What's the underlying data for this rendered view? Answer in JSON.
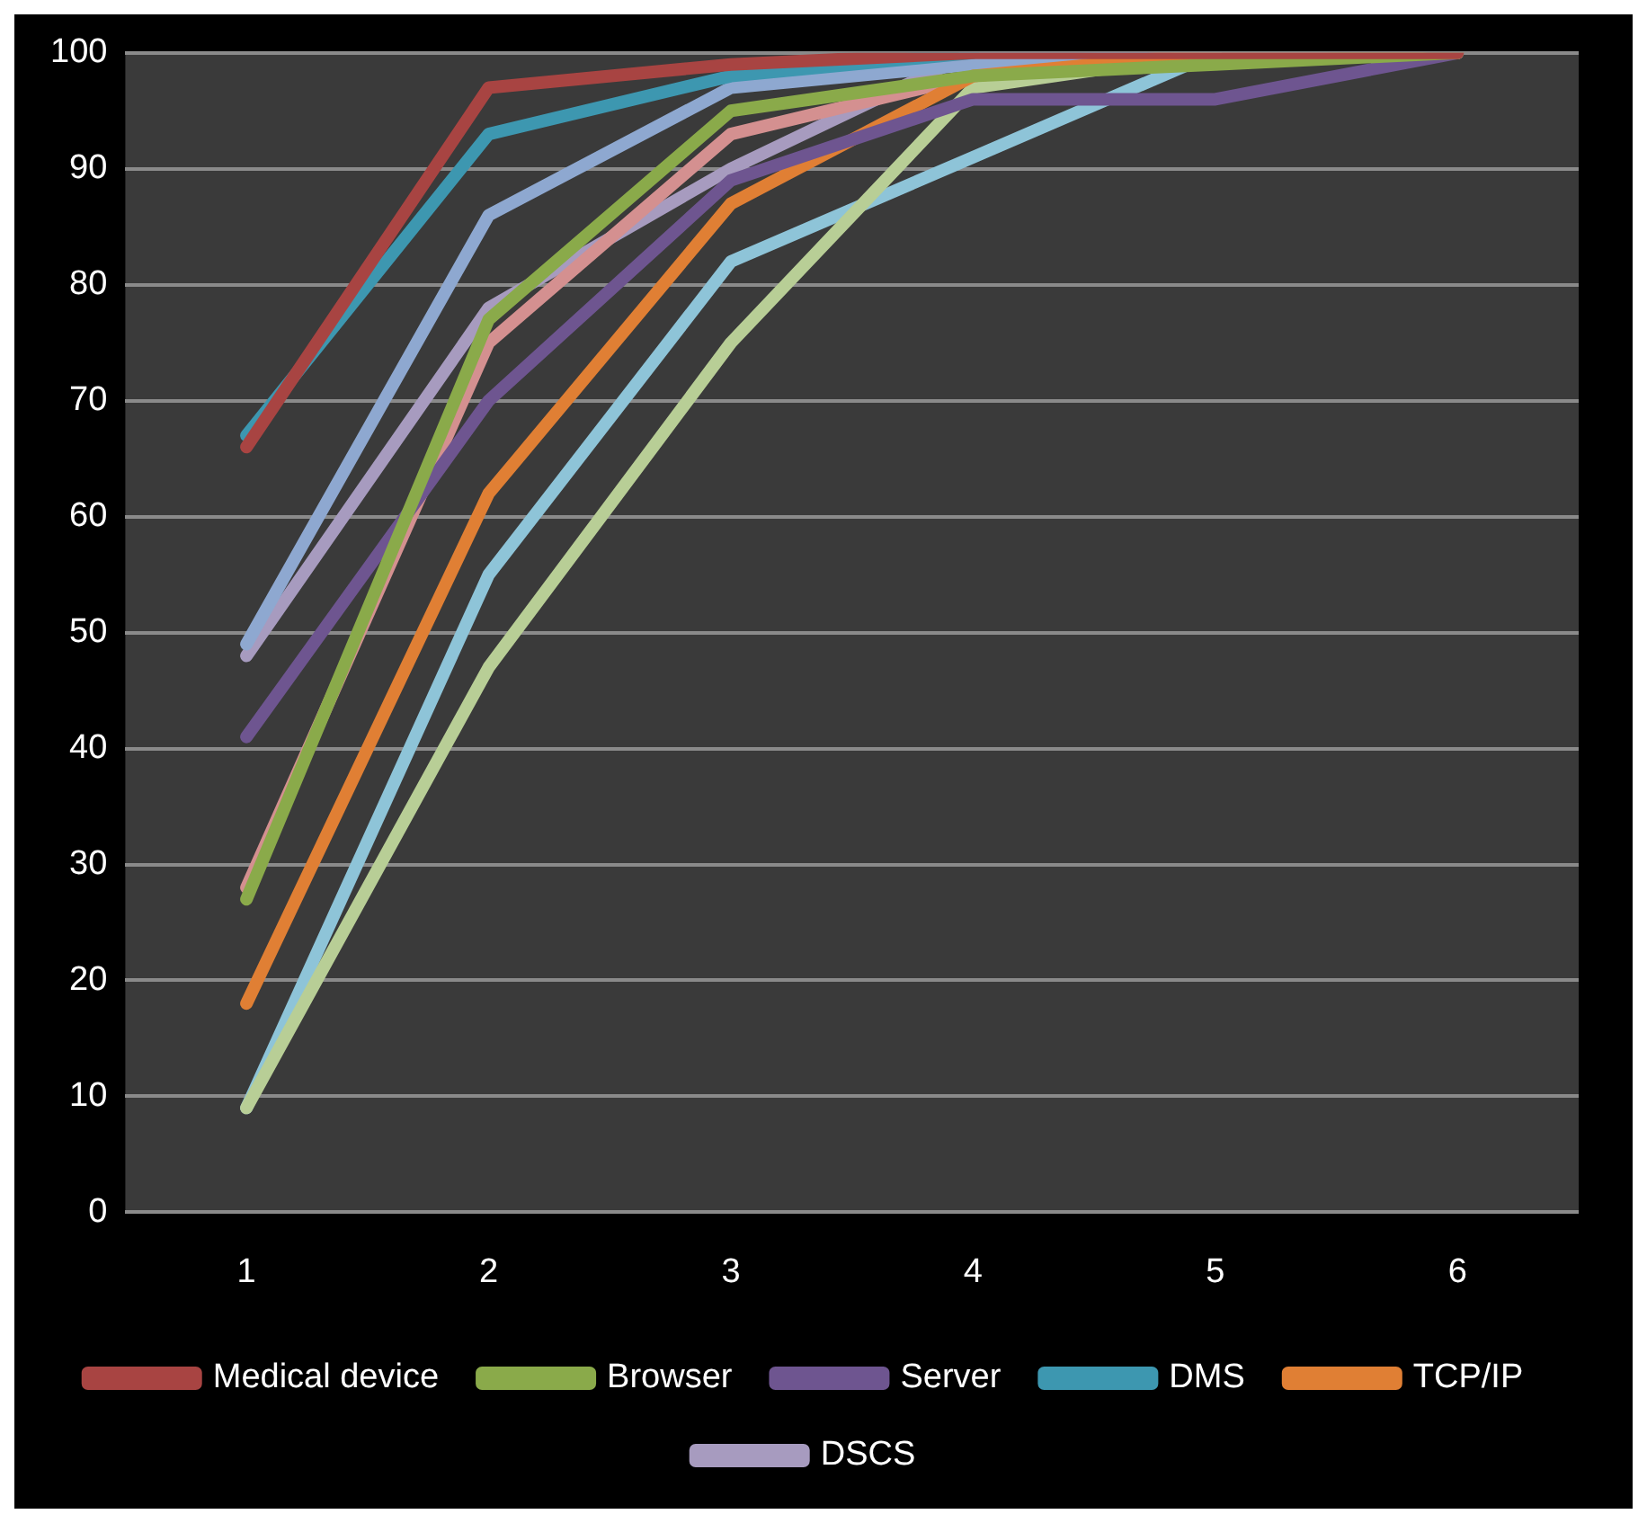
{
  "chart_data": {
    "type": "line",
    "categories": [
      "1",
      "2",
      "3",
      "4",
      "5",
      "6"
    ],
    "ylim": [
      0,
      100
    ],
    "yticks": [
      0,
      10,
      20,
      30,
      40,
      50,
      60,
      70,
      80,
      90,
      100
    ],
    "grid": "y",
    "legend": "bottom",
    "marker": "none",
    "line_style": "solid",
    "series": [
      {
        "name": "Medical device",
        "color": "#a84442",
        "values": [
          66,
          97,
          99,
          100,
          100,
          100
        ]
      },
      {
        "name": "Browser",
        "color": "#8aaa4a",
        "values": [
          27,
          77,
          95,
          98,
          99,
          100
        ]
      },
      {
        "name": "Server",
        "color": "#6e5590",
        "values": [
          41,
          70,
          89,
          96,
          96,
          100
        ]
      },
      {
        "name": "DMS",
        "color": "#3d97b0",
        "values": [
          67,
          93,
          98,
          100,
          null,
          null
        ]
      },
      {
        "name": "TCP/IP",
        "color": "#e07f34",
        "values": [
          18,
          62,
          87,
          98,
          100,
          100
        ]
      },
      {
        "color": "#8ea8d0",
        "values": [
          49,
          86,
          97,
          99,
          100,
          100
        ]
      },
      {
        "color": "#d49090",
        "values": [
          28,
          75,
          93,
          98,
          100,
          100
        ]
      },
      {
        "color": "#b8ce96",
        "values": [
          9,
          47,
          75,
          97,
          100,
          null
        ]
      },
      {
        "name": "DSCS",
        "color": "#a79bbf",
        "values": [
          48,
          78,
          90,
          100,
          100,
          100
        ]
      },
      {
        "color": "#8ec4d8",
        "values": [
          9,
          55,
          82,
          91,
          100,
          null
        ]
      }
    ]
  }
}
